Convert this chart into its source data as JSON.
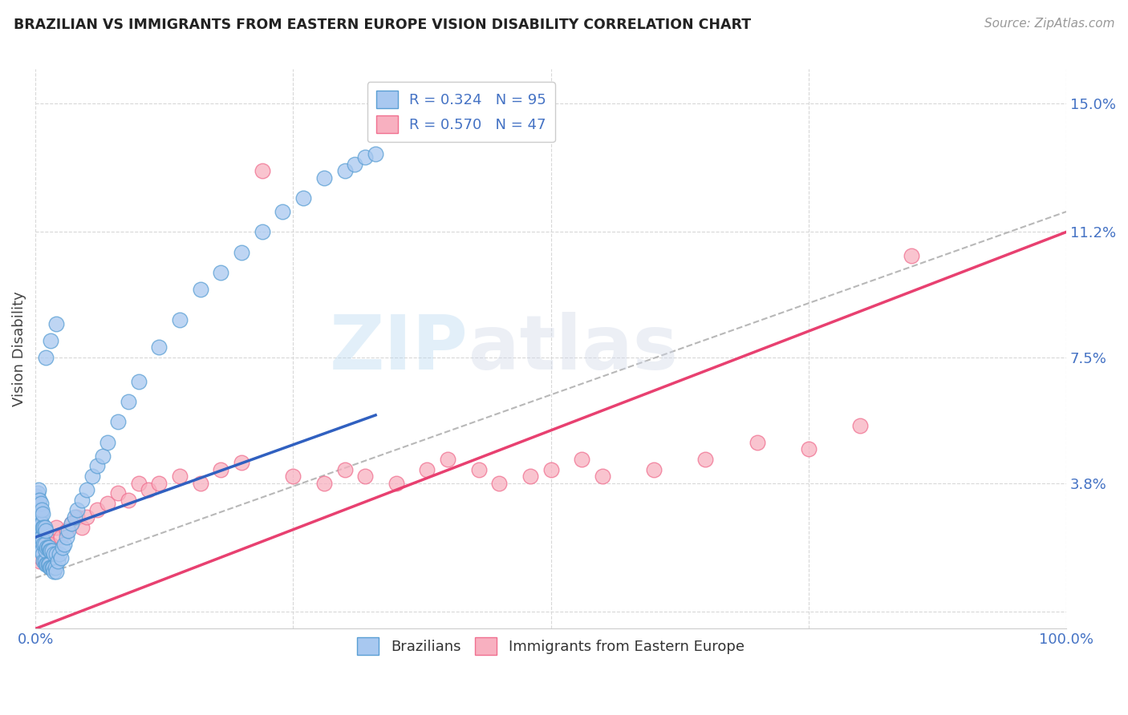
{
  "title": "BRAZILIAN VS IMMIGRANTS FROM EASTERN EUROPE VISION DISABILITY CORRELATION CHART",
  "source": "Source: ZipAtlas.com",
  "ylabel": "Vision Disability",
  "xlim": [
    0.0,
    1.0
  ],
  "ylim": [
    -0.005,
    0.16
  ],
  "xticks": [
    0.0,
    0.25,
    0.5,
    0.75,
    1.0
  ],
  "xtick_labels": [
    "0.0%",
    "",
    "",
    "",
    "100.0%"
  ],
  "ytick_positions": [
    0.0,
    0.038,
    0.075,
    0.112,
    0.15
  ],
  "ytick_labels": [
    "",
    "3.8%",
    "7.5%",
    "11.2%",
    "15.0%"
  ],
  "bottom_legend": [
    "Brazilians",
    "Immigrants from Eastern Europe"
  ],
  "blue_fill": "#a8c8f0",
  "blue_edge": "#5a9fd4",
  "pink_fill": "#f8b0c0",
  "pink_edge": "#f07090",
  "trendline_blue": "#3060c0",
  "trendline_pink": "#e84070",
  "trendline_gray": "#b8b8b8",
  "grid_color": "#d8d8d8",
  "axis_color": "#4472c4",
  "legend_label_blue": "R = 0.324   N = 95",
  "legend_label_pink": "R = 0.570   N = 47",
  "brazil_x": [
    0.001,
    0.001,
    0.001,
    0.001,
    0.002,
    0.002,
    0.002,
    0.002,
    0.002,
    0.003,
    0.003,
    0.003,
    0.003,
    0.003,
    0.003,
    0.004,
    0.004,
    0.004,
    0.004,
    0.004,
    0.005,
    0.005,
    0.005,
    0.005,
    0.005,
    0.006,
    0.006,
    0.006,
    0.006,
    0.007,
    0.007,
    0.007,
    0.007,
    0.008,
    0.008,
    0.008,
    0.009,
    0.009,
    0.009,
    0.01,
    0.01,
    0.01,
    0.011,
    0.011,
    0.012,
    0.012,
    0.013,
    0.013,
    0.014,
    0.014,
    0.015,
    0.015,
    0.016,
    0.016,
    0.017,
    0.018,
    0.018,
    0.019,
    0.02,
    0.02,
    0.022,
    0.023,
    0.025,
    0.026,
    0.028,
    0.03,
    0.032,
    0.035,
    0.038,
    0.04,
    0.045,
    0.05,
    0.055,
    0.06,
    0.065,
    0.07,
    0.08,
    0.09,
    0.1,
    0.12,
    0.14,
    0.16,
    0.18,
    0.2,
    0.22,
    0.24,
    0.26,
    0.28,
    0.3,
    0.31,
    0.32,
    0.33,
    0.01,
    0.015,
    0.02
  ],
  "brazil_y": [
    0.028,
    0.03,
    0.032,
    0.034,
    0.025,
    0.027,
    0.03,
    0.033,
    0.035,
    0.022,
    0.025,
    0.028,
    0.031,
    0.033,
    0.036,
    0.02,
    0.023,
    0.027,
    0.03,
    0.033,
    0.018,
    0.022,
    0.026,
    0.029,
    0.032,
    0.018,
    0.022,
    0.026,
    0.03,
    0.017,
    0.021,
    0.025,
    0.029,
    0.015,
    0.02,
    0.025,
    0.015,
    0.02,
    0.025,
    0.014,
    0.018,
    0.024,
    0.014,
    0.019,
    0.014,
    0.019,
    0.014,
    0.019,
    0.013,
    0.018,
    0.013,
    0.018,
    0.013,
    0.018,
    0.013,
    0.012,
    0.017,
    0.013,
    0.012,
    0.017,
    0.015,
    0.017,
    0.016,
    0.019,
    0.02,
    0.022,
    0.024,
    0.026,
    0.028,
    0.03,
    0.033,
    0.036,
    0.04,
    0.043,
    0.046,
    0.05,
    0.056,
    0.062,
    0.068,
    0.078,
    0.086,
    0.095,
    0.1,
    0.106,
    0.112,
    0.118,
    0.122,
    0.128,
    0.13,
    0.132,
    0.134,
    0.135,
    0.075,
    0.08,
    0.085
  ],
  "eastern_x": [
    0.003,
    0.004,
    0.005,
    0.006,
    0.008,
    0.01,
    0.012,
    0.015,
    0.018,
    0.02,
    0.025,
    0.03,
    0.035,
    0.04,
    0.045,
    0.05,
    0.06,
    0.07,
    0.08,
    0.09,
    0.1,
    0.11,
    0.12,
    0.14,
    0.16,
    0.18,
    0.2,
    0.22,
    0.25,
    0.28,
    0.3,
    0.32,
    0.35,
    0.38,
    0.4,
    0.43,
    0.45,
    0.48,
    0.5,
    0.53,
    0.55,
    0.6,
    0.65,
    0.7,
    0.75,
    0.8,
    0.85
  ],
  "eastern_y": [
    0.018,
    0.015,
    0.016,
    0.018,
    0.02,
    0.022,
    0.02,
    0.02,
    0.018,
    0.025,
    0.022,
    0.024,
    0.026,
    0.028,
    0.025,
    0.028,
    0.03,
    0.032,
    0.035,
    0.033,
    0.038,
    0.036,
    0.038,
    0.04,
    0.038,
    0.042,
    0.044,
    0.13,
    0.04,
    0.038,
    0.042,
    0.04,
    0.038,
    0.042,
    0.045,
    0.042,
    0.038,
    0.04,
    0.042,
    0.045,
    0.04,
    0.042,
    0.045,
    0.05,
    0.048,
    0.055,
    0.105
  ],
  "blue_trend_x0": 0.0,
  "blue_trend_x1": 0.33,
  "blue_trend_y0": 0.022,
  "blue_trend_y1": 0.058,
  "pink_trend_x0": 0.0,
  "pink_trend_x1": 1.0,
  "pink_trend_y0": -0.005,
  "pink_trend_y1": 0.112,
  "gray_trend_x0": 0.0,
  "gray_trend_x1": 1.0,
  "gray_trend_y0": 0.01,
  "gray_trend_y1": 0.118
}
